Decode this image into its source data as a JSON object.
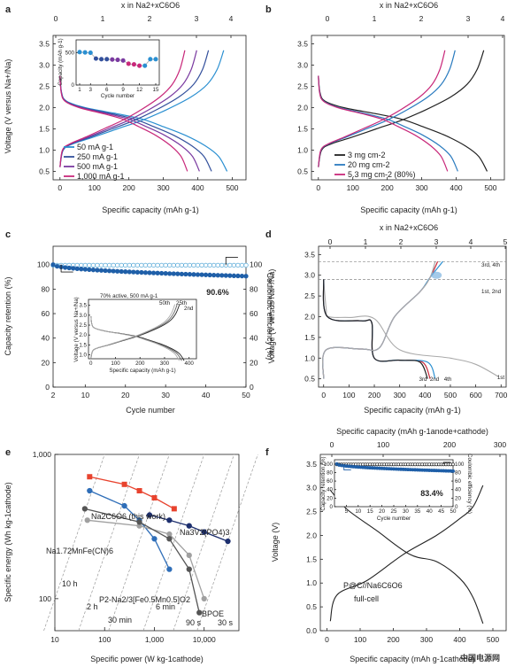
{
  "panels": {
    "a": {
      "letter": "a",
      "top_label": "x in Na2+xC6O6",
      "ylabel": "Voltage (V versus Na+/Na)",
      "xlabel": "Specific capacity (mAh g-1)",
      "x_ticks": [
        "0",
        "100",
        "200",
        "300",
        "400",
        "500"
      ],
      "y_ticks": [
        "0.5",
        "1.0",
        "1.5",
        "2.0",
        "2.5",
        "3.0",
        "3.5"
      ],
      "top_ticks": [
        "0",
        "1",
        "2",
        "3",
        "4"
      ],
      "legend": [
        "50 mA g-1",
        "250 mA g-1",
        "500 mA g-1",
        "1,000 mA g-1"
      ],
      "inset": {
        "ylabel": "Capacity (mAh g-1)",
        "xlabel": "Cycle number",
        "x_ticks": [
          "1",
          "3",
          "6",
          "9",
          "12",
          "15"
        ],
        "y_ticks": [
          "0",
          "500"
        ]
      }
    },
    "b": {
      "letter": "b",
      "top_label": "x in Na2+xC6O6",
      "xlabel": "Specific capacity (mAh g-1)",
      "x_ticks": [
        "0",
        "100",
        "200",
        "300",
        "400",
        "500"
      ],
      "y_ticks": [
        "0.5",
        "1.0",
        "1.5",
        "2.0",
        "2.5",
        "3.0",
        "3.5"
      ],
      "top_ticks": [
        "0",
        "1",
        "2",
        "3",
        "4"
      ],
      "legend": [
        "3 mg cm-2",
        "20 mg cm-2",
        "5.3 mg cm-2 (80%)"
      ]
    },
    "c": {
      "letter": "c",
      "ylabel_left": "Capacity retention (%)",
      "ylabel_right": "Coulombic efficiency (%)",
      "xlabel": "Cycle number",
      "x_ticks": [
        "2",
        "10",
        "20",
        "30",
        "40",
        "50"
      ],
      "y_ticks_left": [
        "0",
        "20",
        "40",
        "60",
        "80",
        "100"
      ],
      "y_ticks_right": [
        "0",
        "20",
        "40",
        "60",
        "80",
        "100"
      ],
      "annotation": "90.6%",
      "inset": {
        "title": "70% active, 500 mA g-1",
        "labels": [
          "50th",
          "25th",
          "2nd"
        ],
        "ylabel": "Voltage (V versus Na+/Na)",
        "xlabel": "Specific capacity (mAh g-1)",
        "x_ticks": [
          "0",
          "100",
          "200",
          "300",
          "400"
        ],
        "y_ticks": [
          "1.0",
          "1.5",
          "2.0",
          "2.5",
          "3.0",
          "3.5"
        ]
      }
    },
    "d": {
      "letter": "d",
      "top_label": "x in Na2+xC6O6",
      "ylabel": "Voltage (V versus Na+/Na)",
      "xlabel": "Specific capacity (mAh g-1)",
      "x_ticks": [
        "0",
        "100",
        "200",
        "300",
        "400",
        "500",
        "600",
        "700"
      ],
      "y_ticks": [
        "0.5",
        "1.0",
        "1.5",
        "2.0",
        "2.5",
        "3.0",
        "3.5"
      ],
      "top_ticks": [
        "0",
        "1",
        "2",
        "3",
        "4",
        "5"
      ],
      "labels": [
        "3rd, 4th",
        "1st, 2nd",
        "3rd",
        "2nd",
        "4th",
        "1st"
      ]
    },
    "e": {
      "letter": "e",
      "ylabel": "Specific energy (Wh kg-1cathode)",
      "xlabel": "Specific power (W kg-1cathode)",
      "x_ticks": [
        "10",
        "100",
        "1,000",
        "10,000"
      ],
      "y_ticks": [
        "100",
        "1,000"
      ],
      "series_labels": [
        "Na2C6O6 (this work)",
        "Na3V2(PO4)3",
        "Na1.72MnFe(CN)6",
        "P2-Na2/3[Fe0.5Mn0.5]O2",
        "BPOE"
      ],
      "time_labels": [
        "10 h",
        "2 h",
        "30 min",
        "6 min",
        "90 s",
        "30 s"
      ]
    },
    "f": {
      "letter": "f",
      "top_label": "Specific capacity (mAh g-1anode+cathode)",
      "ylabel": "Voltage (V)",
      "xlabel": "Specific capacity (mAh g-1cathode)",
      "top_ticks": [
        "0",
        "100",
        "200",
        "300"
      ],
      "x_ticks": [
        "0",
        "100",
        "200",
        "300",
        "400",
        "500"
      ],
      "y_ticks": [
        "0.0",
        "0.5",
        "1.0",
        "1.5",
        "2.0",
        "2.5",
        "3.0",
        "3.5"
      ],
      "cell_label_1": "P@C//Na6C6O6",
      "cell_label_2": "full-cell",
      "inset": {
        "ylabel_left": "Capacity retention (%)",
        "ylabel_right": "Coulombic efficiency (%)",
        "xlabel": "Cycle number",
        "annotation": "83.4%",
        "x_ticks": [
          "5",
          "10",
          "15",
          "20",
          "25",
          "30",
          "35",
          "40",
          "45",
          "50"
        ],
        "y_ticks": [
          "0",
          "20",
          "40",
          "60",
          "80",
          "100"
        ]
      }
    }
  },
  "watermark": "中国电源网",
  "chart_data": [
    {
      "type": "line",
      "title": "",
      "panel": "a",
      "xlabel": "Specific capacity (mAh g-1)",
      "ylabel": "Voltage (V versus Na+/Na)",
      "xlim": [
        -20,
        540
      ],
      "ylim": [
        0.3,
        3.7
      ],
      "series": [
        {
          "name": "50 mA g-1",
          "color": "#2a8fd1",
          "end_capacity": 485
        },
        {
          "name": "250 mA g-1",
          "color": "#33509c",
          "end_capacity": 440
        },
        {
          "name": "500 mA g-1",
          "color": "#7a3aa0",
          "end_capacity": 405
        },
        {
          "name": "1,000 mA g-1",
          "color": "#c8287a",
          "end_capacity": 370
        }
      ],
      "inset": {
        "type": "scatter",
        "x": [
          1,
          2,
          3,
          4,
          5,
          6,
          7,
          8,
          9,
          10,
          11,
          12,
          13,
          14,
          15
        ],
        "y": [
          510,
          505,
          500,
          410,
          400,
          400,
          395,
          390,
          380,
          330,
          320,
          300,
          300,
          400,
          400
        ]
      }
    },
    {
      "type": "line",
      "title": "",
      "panel": "b",
      "xlabel": "Specific capacity (mAh g-1)",
      "xlim": [
        -20,
        540
      ],
      "ylim": [
        0.3,
        3.7
      ],
      "series": [
        {
          "name": "3 mg cm-2",
          "color": "#222222",
          "end_capacity": 490
        },
        {
          "name": "20 mg cm-2",
          "color": "#2a7bbf",
          "end_capacity": 405
        },
        {
          "name": "5.3 mg cm-2 (80%)",
          "color": "#c8287a",
          "end_capacity": 375
        }
      ]
    },
    {
      "type": "scatter",
      "title": "",
      "panel": "c",
      "xlabel": "Cycle number",
      "ylabel": "Capacity retention (%)",
      "xlim": [
        2,
        50
      ],
      "ylim": [
        0,
        115
      ],
      "series": [
        {
          "name": "Capacity retention",
          "color": "#1f5fa8",
          "start": 100,
          "end": 90.6
        },
        {
          "name": "Coulombic efficiency",
          "color": "#52a6d6",
          "value": 99.5
        }
      ]
    },
    {
      "type": "line",
      "title": "",
      "panel": "d",
      "xlabel": "Specific capacity (mAh g-1)",
      "ylabel": "Voltage (V versus Na+/Na)",
      "xlim": [
        -20,
        720
      ],
      "ylim": [
        0.3,
        3.7
      ]
    },
    {
      "type": "scatter",
      "title": "",
      "panel": "e",
      "xlabel": "Specific power (W kg-1cathode)",
      "ylabel": "Specific energy (Wh kg-1cathode)",
      "xscale": "log",
      "yscale": "log",
      "xlim": [
        10,
        50000
      ],
      "ylim": [
        60,
        1000
      ],
      "series": [
        {
          "name": "Na2C6O6 (this work)",
          "color": "#e8432e",
          "x": [
            50,
            250,
            500,
            1000,
            2500
          ],
          "y": [
            700,
            620,
            560,
            500,
            420
          ]
        },
        {
          "name": "Na3V2(PO4)3",
          "color": "#1d2f6e",
          "x": [
            800,
            2000,
            5000,
            10000,
            30000
          ],
          "y": [
            380,
            350,
            320,
            290,
            250
          ]
        },
        {
          "name": "P2-Na2/3[Fe0.5Mn0.5]O2",
          "color": "#2f6eb8",
          "x": [
            50,
            250,
            500,
            1000,
            2000
          ],
          "y": [
            560,
            440,
            350,
            260,
            160
          ]
        },
        {
          "name": "Na1.72MnFe(CN)6",
          "color": "#a0a0a0",
          "x": [
            45,
            500,
            2000,
            5000,
            10000
          ],
          "y": [
            350,
            320,
            280,
            200,
            100
          ]
        },
        {
          "name": "BPOE",
          "color": "#555555",
          "x": [
            40,
            500,
            2000,
            5000,
            8000
          ],
          "y": [
            420,
            340,
            260,
            160,
            80
          ]
        }
      ]
    },
    {
      "type": "line",
      "title": "",
      "panel": "f",
      "xlabel": "Specific capacity (mAh g-1cathode)",
      "ylabel": "Voltage (V)",
      "xlim": [
        -20,
        540
      ],
      "ylim": [
        0,
        3.7
      ],
      "inset": {
        "type": "scatter",
        "xlim": [
          0,
          50
        ],
        "ylim": [
          0,
          110
        ],
        "series": [
          {
            "name": "Capacity retention",
            "start": 100,
            "end": 83.4
          },
          {
            "name": "Coulombic efficiency",
            "value": 99
          }
        ]
      }
    }
  ]
}
